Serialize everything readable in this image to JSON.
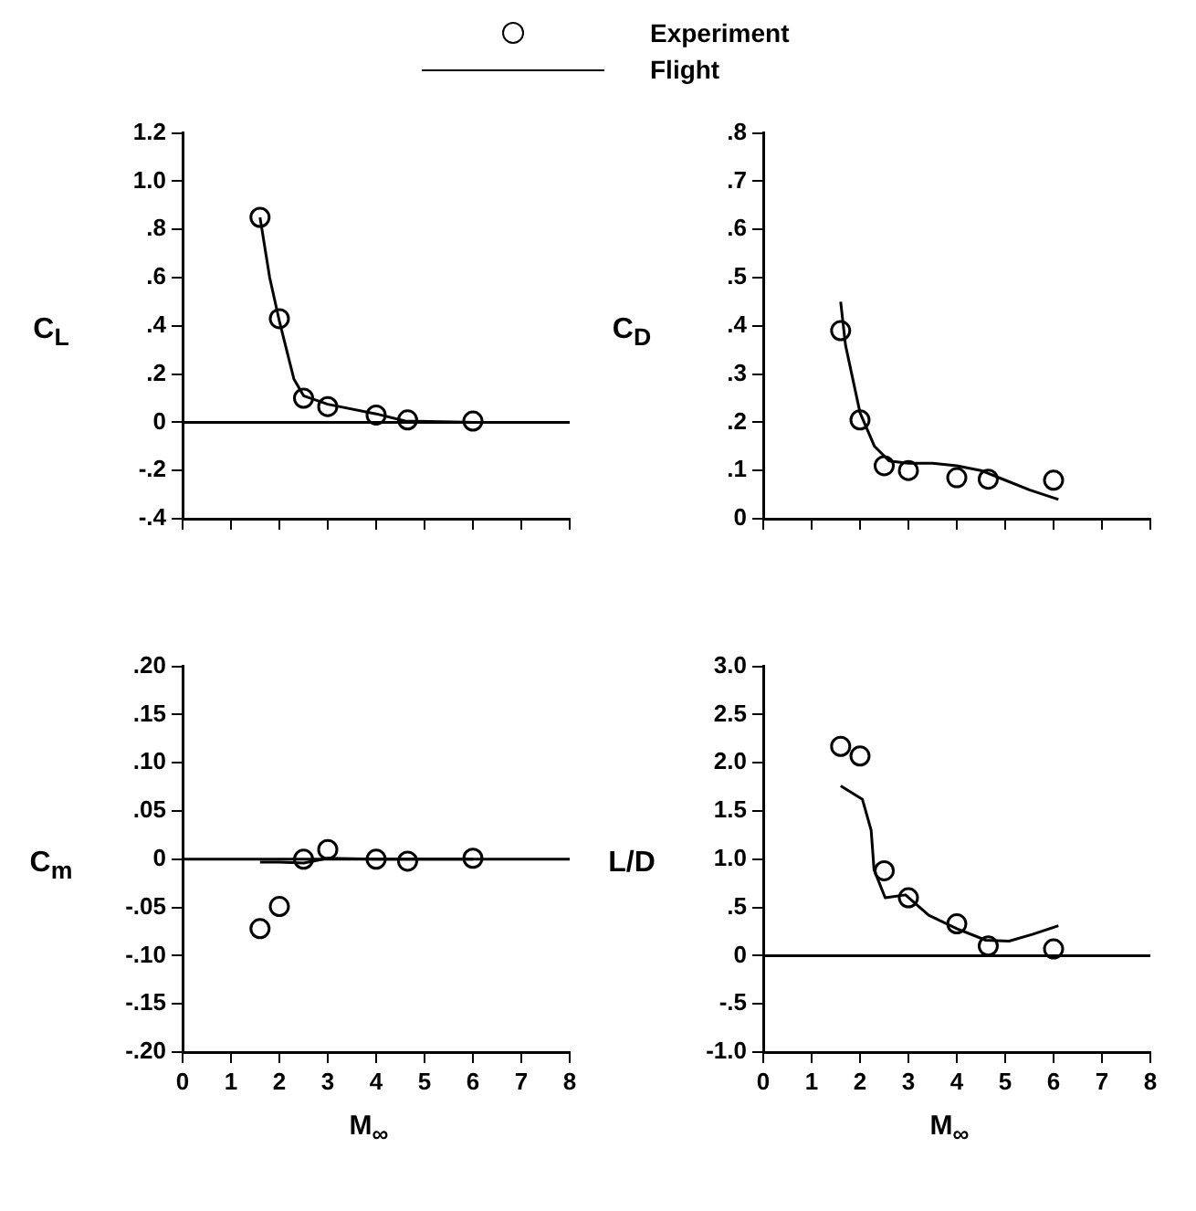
{
  "chart_data": [
    {
      "type": "scatter",
      "ylabel": "C$_{L}$",
      "legend": "top",
      "tick_labels": "y",
      "xlim": [
        0,
        8
      ],
      "xticks": [
        {
          "value": 0,
          "label": null
        },
        {
          "value": 1,
          "label": null
        },
        {
          "value": 2,
          "label": null
        },
        {
          "value": 3,
          "label": null
        },
        {
          "value": 4,
          "label": null
        },
        {
          "value": 5,
          "label": null
        },
        {
          "value": 6,
          "label": null
        },
        {
          "value": 7,
          "label": null
        },
        {
          "value": 8,
          "label": null
        }
      ],
      "ylim": [
        -0.4,
        1.2
      ],
      "yticks": [
        {
          "value": -0.4,
          "label": "-.4"
        },
        {
          "value": -0.2,
          "label": "-.2"
        },
        {
          "value": 0,
          "label": "0"
        },
        {
          "value": 0.2,
          "label": ".2"
        },
        {
          "value": 0.4,
          "label": ".4"
        },
        {
          "value": 0.6,
          "label": ".6"
        },
        {
          "value": 0.8,
          "label": ".8"
        },
        {
          "value": 1,
          "label": "1.0"
        },
        {
          "value": 1.2,
          "label": "1.2"
        }
      ],
      "ref_lines": [
        {
          "axis": "y",
          "value": 0,
          "color": "#000000"
        }
      ],
      "series": [
        {
          "name": "Experiment",
          "type": "scatter",
          "marker": "circle",
          "color": "#000000",
          "x": [
            1.6,
            2.0,
            2.5,
            3.0,
            4.0,
            4.65,
            6.0
          ],
          "values": [
            0.85,
            0.43,
            0.1,
            0.065,
            0.03,
            0.01,
            0.005
          ]
        },
        {
          "name": "Flight",
          "type": "line",
          "marker": "none",
          "color": "#000000",
          "x": [
            1.6,
            1.8,
            2.0,
            2.3,
            2.5,
            3.0,
            4.0,
            4.6,
            6.0
          ],
          "values": [
            0.85,
            0.6,
            0.42,
            0.18,
            0.11,
            0.075,
            0.035,
            0.005,
            0.0
          ]
        }
      ]
    },
    {
      "type": "scatter",
      "ylabel": "C$_{D}$",
      "tick_labels": "y",
      "xlim": [
        0,
        8
      ],
      "xticks": [
        {
          "value": 0,
          "label": null
        },
        {
          "value": 1,
          "label": null
        },
        {
          "value": 2,
          "label": null
        },
        {
          "value": 3,
          "label": null
        },
        {
          "value": 4,
          "label": null
        },
        {
          "value": 5,
          "label": null
        },
        {
          "value": 6,
          "label": null
        },
        {
          "value": 7,
          "label": null
        },
        {
          "value": 8,
          "label": null
        }
      ],
      "ylim": [
        0,
        0.8
      ],
      "yticks": [
        {
          "value": 0,
          "label": "0"
        },
        {
          "value": 0.1,
          "label": ".1"
        },
        {
          "value": 0.2,
          "label": ".2"
        },
        {
          "value": 0.3,
          "label": ".3"
        },
        {
          "value": 0.4,
          "label": ".4"
        },
        {
          "value": 0.5,
          "label": ".5"
        },
        {
          "value": 0.6,
          "label": ".6"
        },
        {
          "value": 0.7,
          "label": ".7"
        },
        {
          "value": 0.8,
          "label": ".8"
        }
      ],
      "series": [
        {
          "type": "scatter",
          "marker": "circle",
          "color": "#000000",
          "x": [
            1.6,
            2.0,
            2.5,
            3.0,
            4.0,
            4.65,
            6.0
          ],
          "values": [
            0.39,
            0.205,
            0.11,
            0.1,
            0.085,
            0.082,
            0.08
          ]
        },
        {
          "type": "line",
          "marker": "none",
          "color": "#000000",
          "x": [
            1.6,
            1.7,
            2.0,
            2.3,
            2.6,
            3.0,
            3.5,
            4.0,
            4.5,
            5.0,
            5.5,
            6.1
          ],
          "values": [
            0.45,
            0.36,
            0.22,
            0.15,
            0.12,
            0.115,
            0.115,
            0.11,
            0.1,
            0.08,
            0.06,
            0.04
          ]
        }
      ]
    },
    {
      "type": "scatter",
      "ylabel": "C$_{m}$",
      "xlabel": "M$_{∞}$",
      "xlim": [
        0,
        8
      ],
      "xticks": [
        0,
        1,
        2,
        3,
        4,
        5,
        6,
        7,
        8
      ],
      "ylim": [
        -0.2,
        0.2
      ],
      "yticks": [
        {
          "value": -0.2,
          "label": "-.20"
        },
        {
          "value": -0.15,
          "label": "-.15"
        },
        {
          "value": -0.1,
          "label": "-.10"
        },
        {
          "value": -0.05,
          "label": "-.05"
        },
        {
          "value": 0,
          "label": "0"
        },
        {
          "value": 0.05,
          "label": ".05"
        },
        {
          "value": 0.1,
          "label": ".10"
        },
        {
          "value": 0.15,
          "label": ".15"
        },
        {
          "value": 0.2,
          "label": ".20"
        }
      ],
      "ref_lines": [
        {
          "axis": "y",
          "value": 0,
          "color": "#000000"
        }
      ],
      "series": [
        {
          "type": "scatter",
          "marker": "circle",
          "color": "#000000",
          "x": [
            1.6,
            2.0,
            2.5,
            3.0,
            4.0,
            4.65,
            6.0
          ],
          "values": [
            -0.072,
            -0.049,
            0.0,
            0.01,
            0.0,
            -0.002,
            0.001
          ]
        },
        {
          "type": "line",
          "marker": "none",
          "color": "#000000",
          "x": [
            1.6,
            2.0,
            2.5,
            3.0,
            4.0,
            6.0
          ],
          "values": [
            -0.003,
            -0.003,
            -0.004,
            0.001,
            0.0,
            0.0
          ]
        }
      ]
    },
    {
      "type": "scatter",
      "ylabel": "L/D",
      "xlabel": "M$_{∞}$",
      "xlim": [
        0,
        8
      ],
      "xticks": [
        0,
        1,
        2,
        3,
        4,
        5,
        6,
        7,
        8
      ],
      "ylim": [
        -1,
        3
      ],
      "yticks": [
        {
          "value": -1,
          "label": "-1.0"
        },
        {
          "value": -0.5,
          "label": "-.5"
        },
        {
          "value": 0,
          "label": "0"
        },
        {
          "value": 0.5,
          "label": ".5"
        },
        {
          "value": 1,
          "label": "1.0"
        },
        {
          "value": 1.5,
          "label": "1.5"
        },
        {
          "value": 2,
          "label": "2.0"
        },
        {
          "value": 2.5,
          "label": "2.5"
        },
        {
          "value": 3,
          "label": "3.0"
        }
      ],
      "ref_lines": [
        {
          "axis": "y",
          "value": 0,
          "color": "#000000"
        }
      ],
      "series": [
        {
          "type": "scatter",
          "marker": "circle",
          "color": "#000000",
          "x": [
            1.6,
            2.0,
            2.5,
            3.0,
            4.0,
            4.65,
            6.0
          ],
          "values": [
            2.17,
            2.07,
            0.88,
            0.6,
            0.33,
            0.1,
            0.07
          ]
        },
        {
          "type": "line",
          "marker": "none",
          "color": "#000000",
          "x": [
            1.6,
            2.05,
            2.23,
            2.29,
            2.52,
            2.94,
            3.42,
            4.0,
            4.6,
            5.08,
            5.56,
            6.1
          ],
          "values": [
            1.76,
            1.62,
            1.3,
            0.89,
            0.6,
            0.63,
            0.42,
            0.28,
            0.16,
            0.15,
            0.22,
            0.31
          ]
        }
      ]
    }
  ]
}
